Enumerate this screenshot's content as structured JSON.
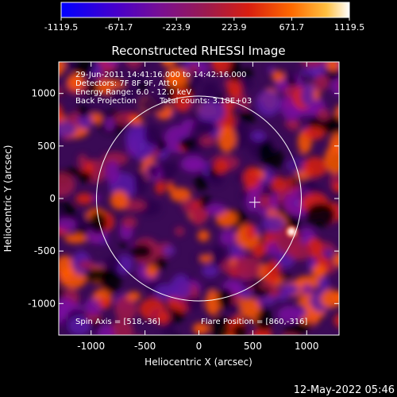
{
  "chart_data": {
    "type": "heatmap",
    "title": "Reconstructed RHESSI Image",
    "xlabel": "Heliocentric X (arcsec)",
    "ylabel": "Heliocentric Y (arcsec)",
    "xlim": [
      -1300,
      1300
    ],
    "ylim": [
      -1300,
      1300
    ],
    "xticks": [
      -1000,
      -500,
      0,
      500,
      1000
    ],
    "yticks": [
      -1000,
      -500,
      0,
      500,
      1000
    ],
    "colorbar": {
      "ticks": [
        -1119.5,
        -671.7,
        -223.9,
        223.9,
        671.7,
        1119.5
      ],
      "colors": [
        "#0000ff",
        "#4a00c8",
        "#7a1090",
        "#9a1a50",
        "#d81e10",
        "#ff6a00",
        "#ffc040",
        "#ffffff"
      ]
    },
    "annotations": [
      "29-Jun-2011 14:41:16.000 to 14:42:16.000",
      "Detectors: 7F 8F 9F, Att 0",
      "Energy Range: 6.0 - 12.0 keV",
      "Back Projection",
      "Total counts: 3.18E+03"
    ],
    "spin_axis_label": "Spin Axis = [518,-36]",
    "flare_position_label": "Flare Position = [860,-316]",
    "spin_axis": [
      518,
      -36
    ],
    "flare_position": [
      860,
      -316
    ],
    "solar_limb_radius": 950,
    "timestamp": "12-May-2022 05:46",
    "grid": false
  }
}
